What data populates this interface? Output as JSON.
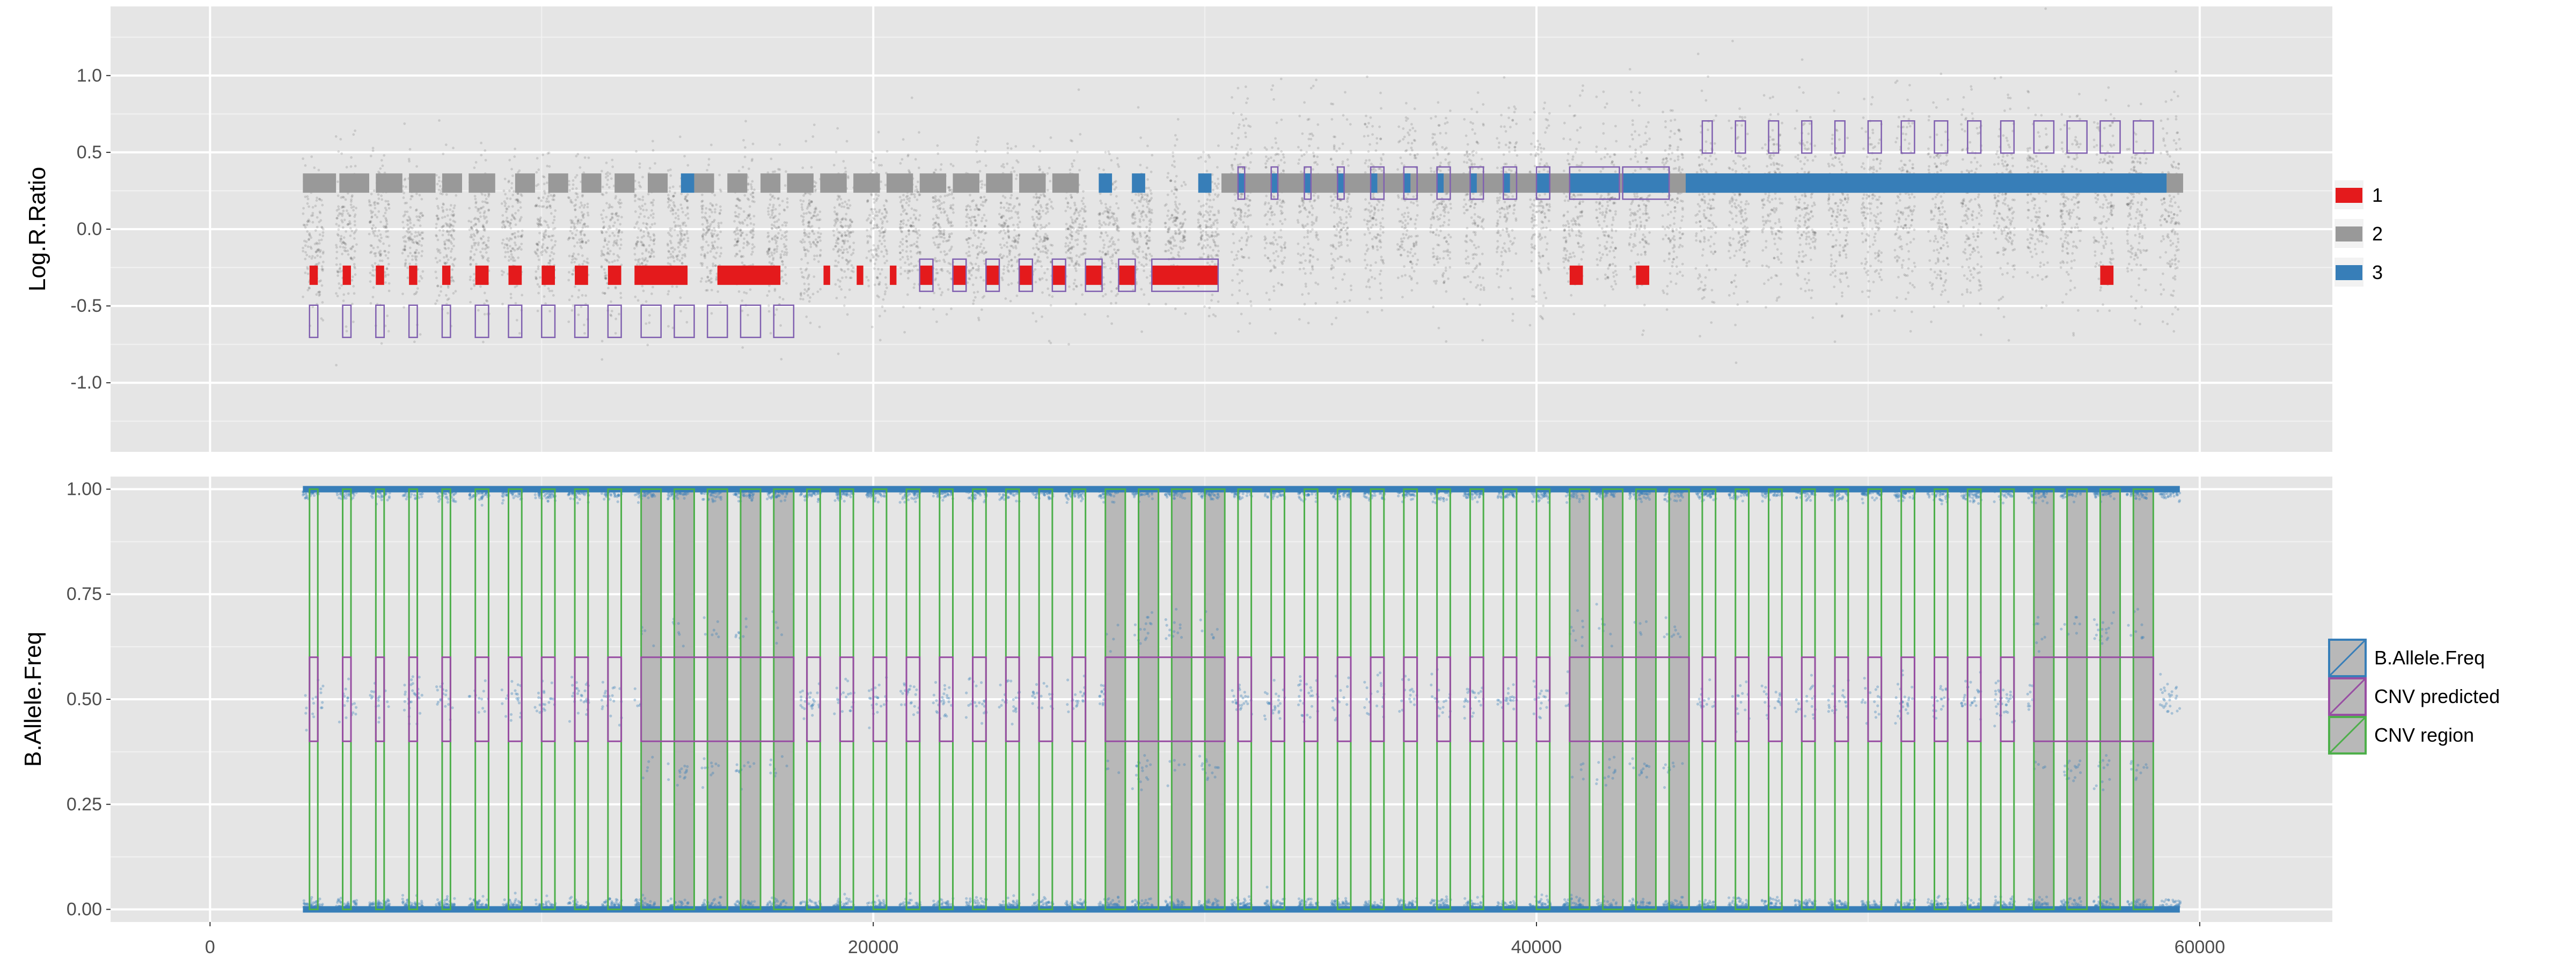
{
  "chart_data": [
    {
      "type": "scatter",
      "panel": "top",
      "ylabel": "Log.R.Ratio",
      "ylim": [
        -1.45,
        1.45
      ],
      "yticks": [
        -1.0,
        -0.5,
        0.0,
        0.5,
        1.0
      ],
      "ytick_labels": [
        "-1.0",
        "-0.5",
        "0.0",
        "0.5",
        "1.0"
      ],
      "grid": true,
      "legend": {
        "placement": "right",
        "entries": [
          {
            "label": "1",
            "color": "#e41a1c"
          },
          {
            "label": "2",
            "color": "#999999"
          },
          {
            "label": "3",
            "color": "#377eb8"
          }
        ]
      },
      "description_of_series": "Log R ratio points per probe block; colored state segments (1 = deletion at about -0.3, 2 = normal at about 0.3, 3 = gain at about 0.3) and purple CNV predicted boxes.",
      "state_segments": [
        {
          "state": 1,
          "y": -0.3,
          "ranges": [
            [
              3000,
              3250
            ],
            [
              4000,
              4250
            ],
            [
              5000,
              5250
            ],
            [
              6000,
              6250
            ],
            [
              7000,
              7250
            ],
            [
              8000,
              8400
            ],
            [
              9000,
              9400
            ],
            [
              10000,
              10400
            ],
            [
              11000,
              11400
            ],
            [
              12000,
              12400
            ],
            [
              12800,
              14400
            ],
            [
              15300,
              17200
            ],
            [
              18500,
              18700
            ],
            [
              19500,
              19700
            ],
            [
              20500,
              20700
            ],
            [
              21400,
              21800
            ],
            [
              22400,
              22800
            ],
            [
              23400,
              23800
            ],
            [
              24400,
              24800
            ],
            [
              25400,
              25800
            ],
            [
              26400,
              26900
            ],
            [
              27400,
              27900
            ],
            [
              28400,
              30400
            ],
            [
              41000,
              41400
            ],
            [
              43000,
              43400
            ],
            [
              57000,
              57400
            ]
          ]
        },
        {
          "state": 2,
          "y": 0.3,
          "ranges": [
            [
              2800,
              3800
            ],
            [
              3900,
              4800
            ],
            [
              5000,
              5800
            ],
            [
              6000,
              6800
            ],
            [
              7000,
              7600
            ],
            [
              7800,
              8600
            ],
            [
              9200,
              9800
            ],
            [
              10200,
              10800
            ],
            [
              11200,
              11800
            ],
            [
              12200,
              12800
            ],
            [
              13200,
              13800
            ],
            [
              14600,
              15200
            ],
            [
              15600,
              16200
            ],
            [
              16600,
              17200
            ],
            [
              17400,
              18200
            ],
            [
              18400,
              19200
            ],
            [
              19400,
              20200
            ],
            [
              20400,
              21200
            ],
            [
              21400,
              22200
            ],
            [
              22400,
              23200
            ],
            [
              23400,
              24200
            ],
            [
              24400,
              25200
            ],
            [
              25400,
              26200
            ],
            [
              30500,
              59500
            ]
          ]
        },
        {
          "state": 3,
          "y": 0.3,
          "ranges": [
            [
              14200,
              14600
            ],
            [
              26800,
              27200
            ],
            [
              27800,
              28200
            ],
            [
              29800,
              30200
            ],
            [
              31000,
              31200
            ],
            [
              32000,
              32200
            ],
            [
              33000,
              33200
            ],
            [
              34000,
              34200
            ],
            [
              35000,
              35200
            ],
            [
              36000,
              36200
            ],
            [
              37000,
              37200
            ],
            [
              38000,
              38200
            ],
            [
              39000,
              39200
            ],
            [
              40000,
              40400
            ],
            [
              41000,
              42500
            ],
            [
              42600,
              44000
            ],
            [
              44500,
              59000
            ]
          ]
        }
      ],
      "cnv_predicted": [
        {
          "y_center": -0.6,
          "ranges": [
            [
              3000,
              3250
            ],
            [
              4000,
              4250
            ],
            [
              5000,
              5250
            ],
            [
              6000,
              6250
            ],
            [
              7000,
              7250
            ],
            [
              8000,
              8400
            ],
            [
              9000,
              9400
            ],
            [
              10000,
              10400
            ],
            [
              11000,
              11400
            ],
            [
              12000,
              12400
            ],
            [
              13000,
              13600
            ],
            [
              14000,
              14600
            ],
            [
              15000,
              15600
            ],
            [
              16000,
              16600
            ],
            [
              17000,
              17600
            ]
          ]
        },
        {
          "y_center": -0.3,
          "ranges": [
            [
              21400,
              21800
            ],
            [
              22400,
              22800
            ],
            [
              23400,
              23800
            ],
            [
              24400,
              24800
            ],
            [
              25400,
              25800
            ],
            [
              26400,
              26900
            ],
            [
              27400,
              27900
            ],
            [
              28400,
              30400
            ]
          ]
        },
        {
          "y_center": 0.3,
          "ranges": [
            [
              31000,
              31200
            ],
            [
              32000,
              32200
            ],
            [
              33000,
              33200
            ],
            [
              34000,
              34200
            ],
            [
              35000,
              35400
            ],
            [
              36000,
              36400
            ],
            [
              37000,
              37400
            ],
            [
              38000,
              38400
            ],
            [
              39000,
              39400
            ],
            [
              40000,
              40400
            ],
            [
              41000,
              42500
            ],
            [
              42600,
              44000
            ]
          ]
        },
        {
          "y_center": 0.6,
          "ranges": [
            [
              45000,
              45300
            ],
            [
              46000,
              46300
            ],
            [
              47000,
              47300
            ],
            [
              48000,
              48300
            ],
            [
              49000,
              49300
            ],
            [
              50000,
              50400
            ],
            [
              51000,
              51400
            ],
            [
              52000,
              52400
            ],
            [
              53000,
              53400
            ],
            [
              54000,
              54400
            ],
            [
              55000,
              55600
            ],
            [
              56000,
              56600
            ],
            [
              57000,
              57600
            ],
            [
              58000,
              58600
            ]
          ]
        }
      ]
    },
    {
      "type": "scatter",
      "panel": "bottom",
      "xlabel": "",
      "ylabel": "B.Allele.Freq",
      "xlim": [
        -3000,
        64000
      ],
      "ylim": [
        -0.03,
        1.03
      ],
      "xticks": [
        0,
        20000,
        40000,
        60000
      ],
      "xtick_labels": [
        "0",
        "20000",
        "40000",
        "60000"
      ],
      "yticks": [
        0.0,
        0.25,
        0.5,
        0.75,
        1.0
      ],
      "ytick_labels": [
        "0.00",
        "0.25",
        "0.50",
        "0.75",
        "1.00"
      ],
      "grid": true,
      "legend": {
        "placement": "right",
        "entries": [
          {
            "label": "B.Allele.Freq",
            "color": "#377eb8"
          },
          {
            "label": "CNV predicted",
            "color": "#984ea3"
          },
          {
            "label": "CNV region",
            "color": "#4daf4a"
          }
        ]
      },
      "description_of_series": "B allele frequency points clustered at 0, 0.5 and 1 (with 0.33/0.67 clusters in gain regions); green CNV region rectangles spanning 0 to 1 and purple CNV predicted boxes around 0.5.",
      "cnv_regions": [
        [
          3000,
          3250
        ],
        [
          4000,
          4250
        ],
        [
          5000,
          5250
        ],
        [
          6000,
          6250
        ],
        [
          7000,
          7250
        ],
        [
          8000,
          8400
        ],
        [
          9000,
          9400
        ],
        [
          10000,
          10400
        ],
        [
          11000,
          11400
        ],
        [
          12000,
          12400
        ],
        [
          13000,
          13600
        ],
        [
          14000,
          14600
        ],
        [
          15000,
          15600
        ],
        [
          16000,
          16600
        ],
        [
          17000,
          17600
        ],
        [
          18000,
          18400
        ],
        [
          19000,
          19400
        ],
        [
          20000,
          20400
        ],
        [
          21000,
          21400
        ],
        [
          22000,
          22400
        ],
        [
          23000,
          23400
        ],
        [
          24000,
          24400
        ],
        [
          25000,
          25400
        ],
        [
          26000,
          26400
        ],
        [
          27000,
          27600
        ],
        [
          28000,
          28600
        ],
        [
          29000,
          29600
        ],
        [
          30000,
          30600
        ],
        [
          31000,
          31400
        ],
        [
          32000,
          32400
        ],
        [
          33000,
          33400
        ],
        [
          34000,
          34400
        ],
        [
          35000,
          35400
        ],
        [
          36000,
          36400
        ],
        [
          37000,
          37400
        ],
        [
          38000,
          38400
        ],
        [
          39000,
          39400
        ],
        [
          40000,
          40400
        ],
        [
          41000,
          41600
        ],
        [
          42000,
          42600
        ],
        [
          43000,
          43600
        ],
        [
          44000,
          44600
        ],
        [
          45000,
          45400
        ],
        [
          46000,
          46400
        ],
        [
          47000,
          47400
        ],
        [
          48000,
          48400
        ],
        [
          49000,
          49400
        ],
        [
          50000,
          50400
        ],
        [
          51000,
          51400
        ],
        [
          52000,
          52400
        ],
        [
          53000,
          53400
        ],
        [
          54000,
          54400
        ],
        [
          55000,
          55600
        ],
        [
          56000,
          56600
        ],
        [
          57000,
          57600
        ],
        [
          58000,
          58600
        ]
      ],
      "cnv_regions_shaded": [
        [
          13000,
          13600
        ],
        [
          14000,
          14600
        ],
        [
          15000,
          15600
        ],
        [
          16000,
          16600
        ],
        [
          17000,
          17600
        ],
        [
          27000,
          27600
        ],
        [
          28000,
          28600
        ],
        [
          29000,
          29600
        ],
        [
          30000,
          30600
        ],
        [
          41000,
          41600
        ],
        [
          42000,
          42600
        ],
        [
          43000,
          43600
        ],
        [
          44000,
          44600
        ],
        [
          55000,
          55600
        ],
        [
          56000,
          56600
        ],
        [
          57000,
          57600
        ],
        [
          58000,
          58600
        ]
      ],
      "cnv_predicted": {
        "ylim": [
          0.4,
          0.6
        ],
        "ranges": [
          [
            3000,
            3250
          ],
          [
            4000,
            4250
          ],
          [
            5000,
            5250
          ],
          [
            6000,
            6250
          ],
          [
            7000,
            7250
          ],
          [
            8000,
            8400
          ],
          [
            9000,
            9400
          ],
          [
            10000,
            10400
          ],
          [
            11000,
            11400
          ],
          [
            12000,
            12400
          ],
          [
            13000,
            17600
          ],
          [
            18000,
            18400
          ],
          [
            19000,
            19400
          ],
          [
            20000,
            20400
          ],
          [
            21000,
            21400
          ],
          [
            22000,
            22400
          ],
          [
            23000,
            23400
          ],
          [
            24000,
            24400
          ],
          [
            25000,
            25400
          ],
          [
            26000,
            26400
          ],
          [
            27000,
            30600
          ],
          [
            31000,
            31400
          ],
          [
            32000,
            32400
          ],
          [
            33000,
            33400
          ],
          [
            34000,
            34400
          ],
          [
            35000,
            35400
          ],
          [
            36000,
            36400
          ],
          [
            37000,
            37400
          ],
          [
            38000,
            38400
          ],
          [
            39000,
            39400
          ],
          [
            40000,
            40400
          ],
          [
            41000,
            44600
          ],
          [
            45000,
            45400
          ],
          [
            46000,
            46400
          ],
          [
            47000,
            47400
          ],
          [
            48000,
            48400
          ],
          [
            49000,
            49400
          ],
          [
            50000,
            50400
          ],
          [
            51000,
            51400
          ],
          [
            52000,
            52400
          ],
          [
            53000,
            53400
          ],
          [
            54000,
            54400
          ],
          [
            55000,
            58600
          ]
        ]
      }
    }
  ]
}
